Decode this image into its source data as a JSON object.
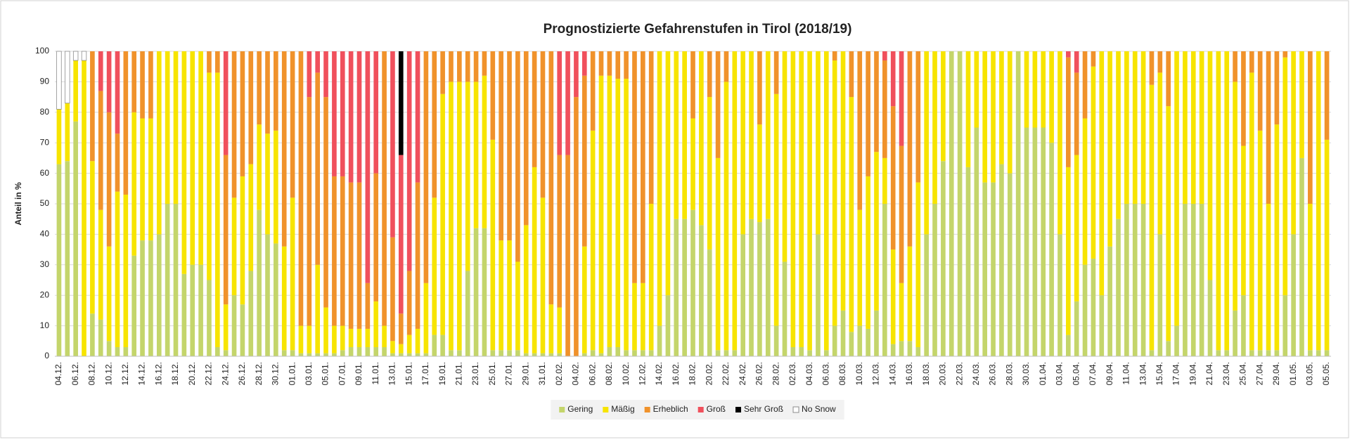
{
  "chart_data": {
    "type": "stacked_bar",
    "title": "Prognostizierte Gefahrenstufen in Tirol (2018/19)",
    "y_label": "Anteil in %",
    "ylim": [
      0,
      100
    ],
    "yticks": [
      0,
      10,
      20,
      30,
      40,
      50,
      60,
      70,
      80,
      90,
      100
    ],
    "grid": true,
    "legend": "bottom",
    "categories": [
      "04.12.",
      null,
      "06.12.",
      null,
      "08.12.",
      null,
      "10.12.",
      null,
      "12.12.",
      null,
      "14.12.",
      null,
      "16.12.",
      null,
      "18.12.",
      null,
      "20.12.",
      null,
      "22.12.",
      null,
      "24.12.",
      null,
      "26.12.",
      null,
      "28.12.",
      null,
      "30.12.",
      null,
      "01.01.",
      null,
      "03.01.",
      null,
      "05.01.",
      null,
      "07.01.",
      null,
      "09.01.",
      null,
      "11.01.",
      null,
      "13.01.",
      null,
      "15.01.",
      null,
      "17.01.",
      null,
      "19.01.",
      null,
      "21.01.",
      null,
      "23.01.",
      null,
      "25.01.",
      null,
      "27.01.",
      null,
      "29.01.",
      null,
      "31.01.",
      null,
      "02.02.",
      null,
      "04.02.",
      null,
      "06.02.",
      null,
      "08.02.",
      null,
      "10.02.",
      null,
      "12.02.",
      null,
      "14.02.",
      null,
      "16.02.",
      null,
      "18.02.",
      null,
      "20.02.",
      null,
      "22.02.",
      null,
      "24.02.",
      null,
      "26.02.",
      null,
      "28.02.",
      null,
      "02.03.",
      null,
      "04.03.",
      null,
      "06.03.",
      null,
      "08.03.",
      null,
      "10.03.",
      null,
      "12.03.",
      null,
      "14.03.",
      null,
      "16.03.",
      null,
      "18.03.",
      null,
      "20.03.",
      null,
      "22.03.",
      null,
      "24.03.",
      null,
      "26.03.",
      null,
      "28.03.",
      null,
      "30.03.",
      null,
      "01.04.",
      null,
      "03.04.",
      null,
      "05.04.",
      null,
      "07.04.",
      null,
      "09.04.",
      null,
      "11.04.",
      null,
      "13.04.",
      null,
      "15.04.",
      null,
      "17.04.",
      null,
      "19.04.",
      null,
      "21.04.",
      null,
      "23.04.",
      null,
      "25.04.",
      null,
      "27.04.",
      null,
      "29.04.",
      null,
      "01.05.",
      null,
      "03.05.",
      null,
      "05.05."
    ],
    "series": [
      {
        "name": "Gering",
        "color": "#c4d56b",
        "values": [
          63,
          64,
          77,
          0,
          14,
          12,
          5,
          3,
          3,
          33,
          38,
          38,
          40,
          50,
          50,
          27,
          30,
          30,
          25,
          3,
          2,
          20,
          17,
          28,
          48,
          40,
          37,
          2,
          2,
          1,
          1,
          1,
          1,
          1,
          2,
          3,
          3,
          3,
          3,
          3,
          1,
          1,
          1,
          1,
          1,
          7,
          7,
          2,
          2,
          28,
          42,
          42,
          2,
          2,
          2,
          2,
          1,
          1,
          1,
          1,
          1,
          0,
          0,
          1,
          2,
          1,
          3,
          3,
          2,
          2,
          2,
          2,
          10,
          20,
          45,
          45,
          48,
          43,
          35,
          2,
          2,
          2,
          40,
          45,
          44,
          45,
          10,
          31,
          3,
          3,
          2,
          40,
          2,
          10,
          15,
          8,
          10,
          9,
          15,
          50,
          4,
          5,
          5,
          3,
          40,
          50,
          64,
          100,
          100,
          62,
          75,
          57,
          57,
          63,
          60,
          100,
          75,
          75,
          75,
          70,
          40,
          7,
          18,
          30,
          32,
          20,
          36,
          45,
          50,
          50,
          50,
          2,
          40,
          5,
          10,
          50,
          50,
          50,
          25,
          2,
          2,
          15,
          20,
          2,
          2,
          2,
          2,
          20,
          40,
          65,
          2,
          2,
          2
        ]
      },
      {
        "name": "Mäßig",
        "color": "#f7e400",
        "values": [
          18,
          19,
          20,
          97,
          50,
          36,
          31,
          51,
          50,
          47,
          40,
          40,
          60,
          50,
          50,
          73,
          70,
          70,
          68,
          90,
          15,
          32,
          42,
          35,
          28,
          33,
          37,
          34,
          50,
          9,
          9,
          29,
          15,
          9,
          8,
          6,
          6,
          6,
          15,
          7,
          4,
          3,
          6,
          8,
          23,
          45,
          79,
          88,
          88,
          62,
          48,
          50,
          69,
          36,
          36,
          29,
          42,
          61,
          51,
          16,
          15,
          0,
          0,
          35,
          72,
          91,
          89,
          88,
          89,
          22,
          22,
          48,
          90,
          80,
          55,
          55,
          30,
          57,
          50,
          63,
          88,
          98,
          60,
          55,
          32,
          55,
          76,
          69,
          97,
          97,
          98,
          60,
          98,
          87,
          85,
          77,
          38,
          50,
          52,
          15,
          31,
          19,
          31,
          54,
          60,
          50,
          36,
          0,
          0,
          38,
          25,
          43,
          43,
          37,
          40,
          0,
          25,
          25,
          25,
          30,
          60,
          55,
          48,
          48,
          63,
          80,
          64,
          55,
          50,
          50,
          50,
          87,
          53,
          77,
          90,
          50,
          50,
          50,
          75,
          98,
          98,
          75,
          49,
          91,
          72,
          48,
          74,
          78,
          60,
          35,
          48,
          98,
          69
        ]
      },
      {
        "name": "Erheblich",
        "color": "#f0922b",
        "values": [
          0,
          0,
          0,
          0,
          36,
          39,
          44,
          19,
          47,
          20,
          22,
          22,
          0,
          0,
          0,
          0,
          0,
          0,
          7,
          7,
          49,
          48,
          41,
          37,
          24,
          27,
          26,
          64,
          48,
          90,
          75,
          63,
          69,
          49,
          49,
          48,
          48,
          15,
          42,
          90,
          34,
          10,
          21,
          48,
          76,
          48,
          14,
          10,
          10,
          10,
          10,
          8,
          29,
          62,
          62,
          69,
          57,
          38,
          48,
          83,
          50,
          66,
          85,
          56,
          26,
          8,
          8,
          9,
          9,
          76,
          76,
          50,
          0,
          0,
          0,
          0,
          22,
          0,
          15,
          35,
          10,
          0,
          0,
          0,
          24,
          0,
          14,
          0,
          0,
          0,
          0,
          0,
          0,
          3,
          0,
          15,
          52,
          41,
          33,
          32,
          47,
          45,
          64,
          43,
          0,
          0,
          0,
          0,
          0,
          0,
          0,
          0,
          0,
          0,
          0,
          0,
          0,
          0,
          0,
          0,
          0,
          36,
          27,
          22,
          5,
          0,
          0,
          0,
          0,
          0,
          0,
          11,
          7,
          18,
          0,
          0,
          0,
          0,
          0,
          0,
          0,
          10,
          31,
          7,
          26,
          50,
          24,
          2,
          0,
          0,
          50,
          0,
          29
        ]
      },
      {
        "name": "Groß",
        "color": "#f0505c",
        "values": [
          0,
          0,
          0,
          0,
          0,
          13,
          20,
          27,
          0,
          0,
          0,
          0,
          0,
          0,
          0,
          0,
          0,
          0,
          0,
          0,
          34,
          0,
          0,
          0,
          0,
          0,
          0,
          0,
          0,
          0,
          15,
          7,
          15,
          41,
          41,
          43,
          43,
          76,
          40,
          0,
          61,
          52,
          72,
          43,
          0,
          0,
          0,
          0,
          0,
          0,
          0,
          0,
          0,
          0,
          0,
          0,
          0,
          0,
          0,
          0,
          34,
          34,
          15,
          8,
          0,
          0,
          0,
          0,
          0,
          0,
          0,
          0,
          0,
          0,
          0,
          0,
          0,
          0,
          0,
          0,
          0,
          0,
          0,
          0,
          0,
          0,
          0,
          0,
          0,
          0,
          0,
          0,
          0,
          0,
          0,
          0,
          0,
          0,
          0,
          3,
          18,
          31,
          0,
          0,
          0,
          0,
          0,
          0,
          0,
          0,
          0,
          0,
          0,
          0,
          0,
          0,
          0,
          0,
          0,
          0,
          0,
          2,
          7,
          0,
          0,
          0,
          0,
          0,
          0,
          0,
          0,
          0,
          0,
          0,
          0,
          0,
          0,
          0,
          0,
          0,
          0,
          0,
          0,
          0,
          0,
          0,
          0,
          0,
          0,
          0,
          0,
          0,
          0
        ]
      },
      {
        "name": "Sehr Groß",
        "color": "#000000",
        "values": [
          0,
          0,
          0,
          0,
          0,
          0,
          0,
          0,
          0,
          0,
          0,
          0,
          0,
          0,
          0,
          0,
          0,
          0,
          0,
          0,
          0,
          0,
          0,
          0,
          0,
          0,
          0,
          0,
          0,
          0,
          0,
          0,
          0,
          0,
          0,
          0,
          0,
          0,
          0,
          0,
          0,
          34,
          0,
          0,
          0,
          0,
          0,
          0,
          0,
          0,
          0,
          0,
          0,
          0,
          0,
          0,
          0,
          0,
          0,
          0,
          0,
          0,
          0,
          0,
          0,
          0,
          0,
          0,
          0,
          0,
          0,
          0,
          0,
          0,
          0,
          0,
          0,
          0,
          0,
          0,
          0,
          0,
          0,
          0,
          0,
          0,
          0,
          0,
          0,
          0,
          0,
          0,
          0,
          0,
          0,
          0,
          0,
          0,
          0,
          0,
          0,
          0,
          0,
          0,
          0,
          0,
          0,
          0,
          0,
          0,
          0,
          0,
          0,
          0,
          0,
          0,
          0,
          0,
          0,
          0,
          0,
          0,
          0,
          0,
          0,
          0,
          0,
          0,
          0,
          0,
          0,
          0,
          0,
          0,
          0,
          0,
          0,
          0,
          0,
          0,
          0,
          0,
          0,
          0,
          0,
          0,
          0,
          0,
          0,
          0,
          0,
          0,
          0
        ]
      },
      {
        "name": "No Snow",
        "color": "#ffffff",
        "values": [
          19,
          17,
          3,
          3,
          0,
          0,
          0,
          0,
          0,
          0,
          0,
          0,
          0,
          0,
          0,
          0,
          0,
          0,
          0,
          0,
          0,
          0,
          0,
          0,
          0,
          0,
          0,
          0,
          0,
          0,
          0,
          0,
          0,
          0,
          0,
          0,
          0,
          0,
          0,
          0,
          0,
          0,
          0,
          0,
          0,
          0,
          0,
          0,
          0,
          0,
          0,
          0,
          0,
          0,
          0,
          0,
          0,
          0,
          0,
          0,
          0,
          0,
          0,
          0,
          0,
          0,
          0,
          0,
          0,
          0,
          0,
          0,
          0,
          0,
          0,
          0,
          0,
          0,
          0,
          0,
          0,
          0,
          0,
          0,
          0,
          0,
          0,
          0,
          0,
          0,
          0,
          0,
          0,
          0,
          0,
          0,
          0,
          0,
          0,
          0,
          0,
          0,
          0,
          0,
          0,
          0,
          0,
          0,
          0,
          0,
          0,
          0,
          0,
          0,
          0,
          0,
          0,
          0,
          0,
          0,
          0,
          0,
          0,
          0,
          0,
          0,
          0,
          0,
          0,
          0,
          0,
          0,
          0,
          0,
          0,
          0,
          0,
          0,
          0,
          0,
          0,
          0,
          0,
          0,
          0,
          0,
          0,
          0,
          0,
          0,
          0,
          0,
          0
        ]
      }
    ]
  }
}
